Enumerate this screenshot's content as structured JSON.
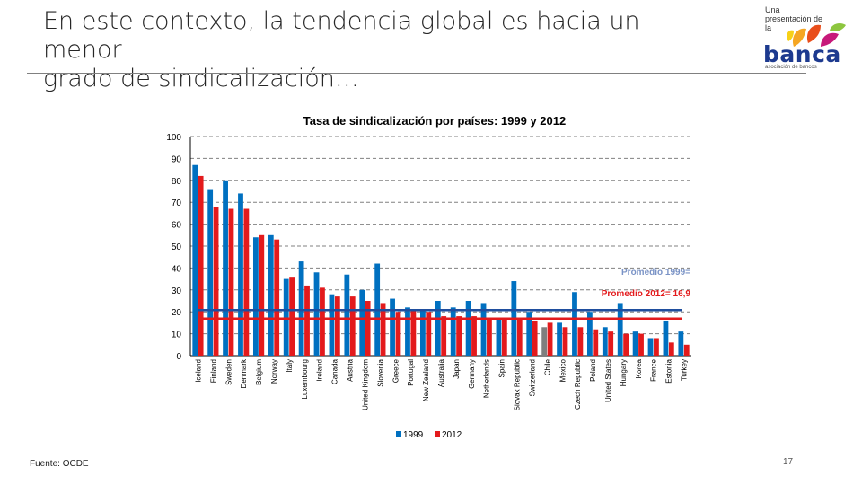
{
  "slide": {
    "title_line1": "En este contexto, la tendencia global es hacia un menor",
    "title_line2": "grado de sindicalización…",
    "source": "Fuente: OCDE",
    "page_number": "17"
  },
  "logo": {
    "presenter_text": "Una presentación de la",
    "word": "banca",
    "tagline": "asociación de bancos"
  },
  "colors": {
    "series_1999": "#0070C0",
    "series_2012": "#E31A1C",
    "highlight_chile_1999": "#7F7F7F",
    "avg_1999_line": "#1F4E9E",
    "avg_2012_line": "#E31A1C",
    "grid": "#808080"
  },
  "chart_data": {
    "type": "bar",
    "title": "Tasa de sindicalización por países: 1999 y 2012",
    "xlabel": "",
    "ylabel": "",
    "ylim": [
      0,
      100
    ],
    "yticks": [
      0,
      10,
      20,
      30,
      40,
      50,
      60,
      70,
      80,
      90,
      100
    ],
    "grid": true,
    "categories": [
      "Iceland",
      "Finland",
      "Sweden",
      "Denmark",
      "Belgium",
      "Norway",
      "Italy",
      "Luxembourg",
      "Ireland",
      "Canada",
      "Austria",
      "United Kingdom",
      "Slovenia",
      "Greece",
      "Portugal",
      "New Zealand",
      "Australia",
      "Japan",
      "Germany",
      "Netherlands",
      "Spain",
      "Slovak Republic",
      "Switzerland",
      "Chile",
      "Mexico",
      "Czech Republic",
      "Poland",
      "United States",
      "Hungary",
      "Korea",
      "France",
      "Estonia",
      "Turkey"
    ],
    "series": [
      {
        "name": "1999",
        "values": [
          87,
          76,
          80,
          74,
          54,
          55,
          35,
          43,
          38,
          28,
          37,
          30,
          42,
          26,
          22,
          21,
          25,
          22,
          25,
          24,
          17,
          34,
          20,
          13,
          15,
          29,
          20,
          13,
          24,
          11,
          8,
          16,
          11
        ]
      },
      {
        "name": "2012",
        "values": [
          82,
          68,
          67,
          67,
          55,
          53,
          36,
          32,
          31,
          27,
          27,
          25,
          24,
          20,
          21,
          20,
          18,
          18,
          18,
          17,
          17,
          17,
          16,
          15,
          13,
          13,
          12,
          11,
          10,
          10,
          8,
          6,
          5
        ]
      }
    ],
    "averages": [
      {
        "label": "Promedio 1999=",
        "value": 20.8
      },
      {
        "label": "Promedio 2012= 16,9",
        "value": 16.9
      }
    ],
    "legend": {
      "placement": "bottom",
      "entries": [
        "1999",
        "2012"
      ]
    }
  }
}
